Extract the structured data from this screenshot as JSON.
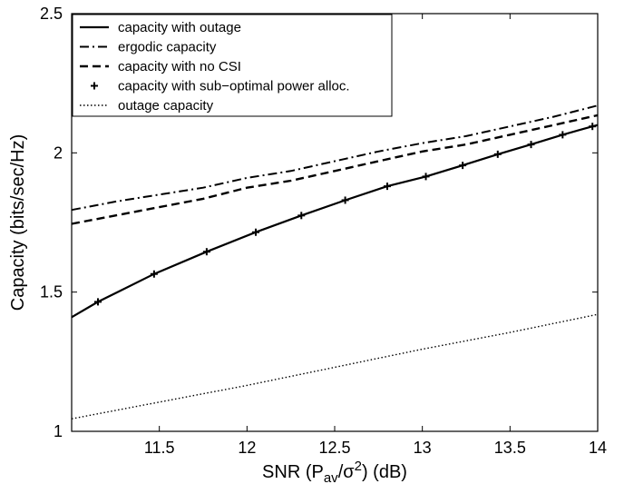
{
  "chart_data": {
    "type": "line",
    "title": "",
    "xlabel_parts": [
      "SNR (P",
      "av",
      "/σ",
      "2",
      ") (dB)"
    ],
    "ylabel": "Capacity (bits/sec/Hz)",
    "xlim": [
      11.0,
      14.0
    ],
    "ylim": [
      1.0,
      2.5
    ],
    "xticks": [
      11.5,
      12,
      12.5,
      13,
      13.5,
      14
    ],
    "xtick_labels": [
      "11.5",
      "12",
      "12.5",
      "13",
      "13.5",
      "14"
    ],
    "yticks": [
      1,
      1.5,
      2,
      2.5
    ],
    "ytick_labels": [
      "1",
      "1.5",
      "2",
      "2.5"
    ],
    "grid": false,
    "legend_position": "top-left",
    "series": [
      {
        "name": "capacity with outage",
        "style": "solid",
        "x": [
          11.0,
          11.15,
          11.47,
          11.77,
          12.05,
          12.31,
          12.56,
          12.8,
          13.02,
          13.23,
          13.43,
          13.62,
          13.8,
          13.97,
          14.0
        ],
        "y": [
          1.41,
          1.465,
          1.565,
          1.645,
          1.715,
          1.775,
          1.83,
          1.88,
          1.915,
          1.955,
          1.995,
          2.03,
          2.065,
          2.095,
          2.1
        ]
      },
      {
        "name": "ergodic capacity",
        "style": "dashdot",
        "x": [
          11.0,
          11.25,
          11.5,
          11.75,
          12.0,
          12.25,
          12.5,
          12.75,
          13.0,
          13.25,
          13.5,
          13.75,
          14.0
        ],
        "y": [
          1.795,
          1.825,
          1.85,
          1.875,
          1.91,
          1.935,
          1.97,
          2.005,
          2.035,
          2.06,
          2.095,
          2.13,
          2.17
        ]
      },
      {
        "name": "capacity with no CSI",
        "style": "dashed",
        "x": [
          11.0,
          11.25,
          11.5,
          11.75,
          12.0,
          12.25,
          12.5,
          12.75,
          13.0,
          13.25,
          13.5,
          13.75,
          14.0
        ],
        "y": [
          1.745,
          1.775,
          1.805,
          1.835,
          1.875,
          1.9,
          1.935,
          1.97,
          2.005,
          2.03,
          2.065,
          2.1,
          2.135
        ]
      },
      {
        "name": "capacity with sub−optimal power alloc.",
        "style": "markers-plus",
        "x": [
          11.15,
          11.47,
          11.77,
          12.05,
          12.31,
          12.56,
          12.8,
          13.02,
          13.23,
          13.43,
          13.62,
          13.8,
          13.97
        ],
        "y": [
          1.465,
          1.565,
          1.645,
          1.715,
          1.775,
          1.83,
          1.88,
          1.915,
          1.955,
          1.995,
          2.03,
          2.065,
          2.095
        ]
      },
      {
        "name": "outage capacity",
        "style": "dotted",
        "x": [
          11.0,
          11.5,
          12.0,
          12.5,
          13.0,
          13.5,
          14.0
        ],
        "y": [
          1.045,
          1.105,
          1.165,
          1.23,
          1.295,
          1.355,
          1.42
        ]
      }
    ]
  }
}
